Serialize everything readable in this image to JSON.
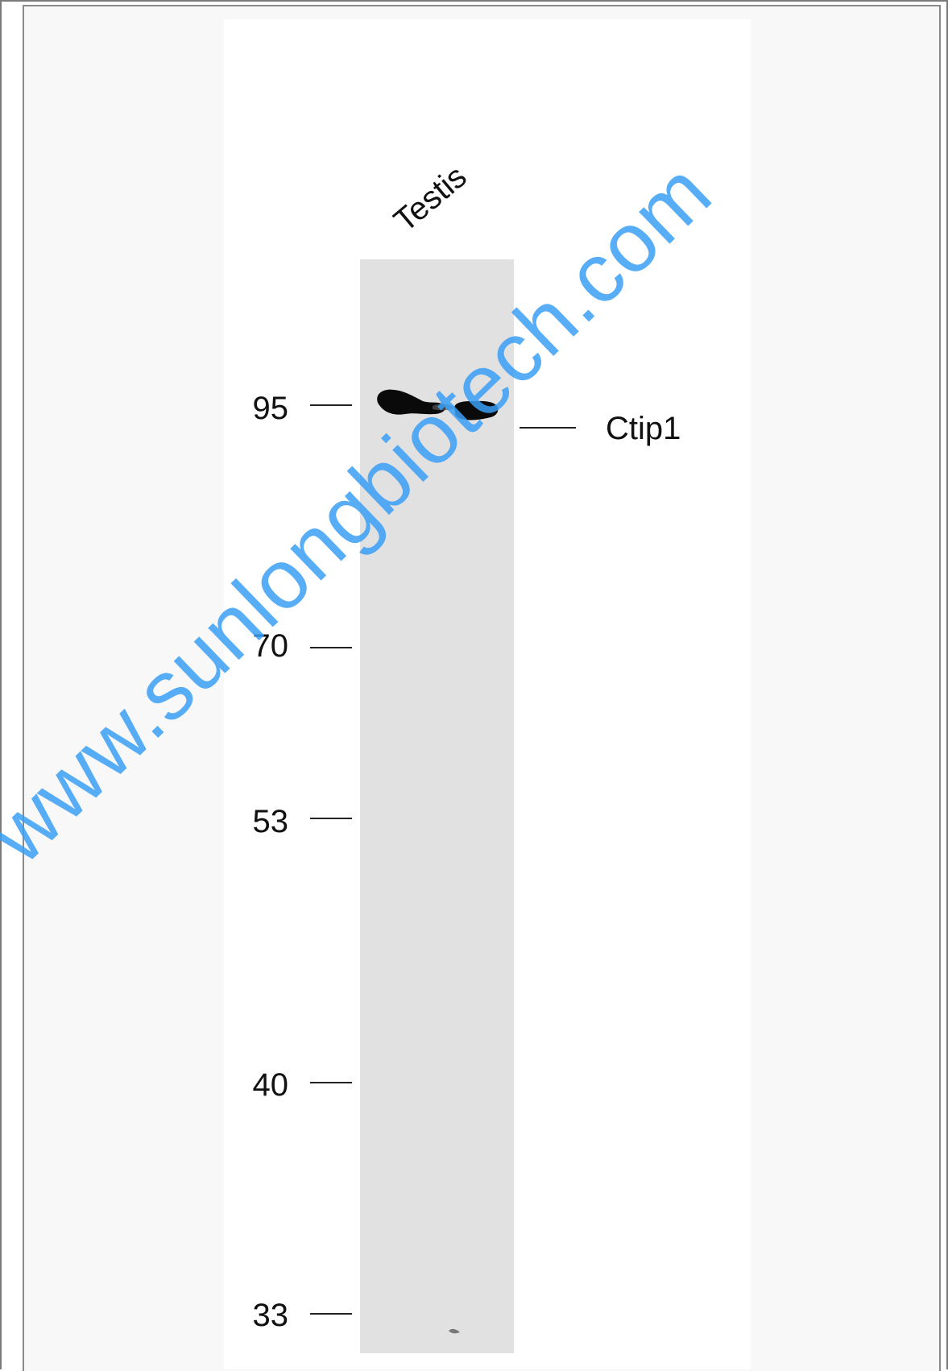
{
  "blot": {
    "lane_label": "Testis",
    "band_label": "Ctip1",
    "markers": [
      {
        "label": "95",
        "kda": 95
      },
      {
        "label": "70",
        "kda": 70
      },
      {
        "label": "53",
        "kda": 53
      },
      {
        "label": "40",
        "kda": 40
      },
      {
        "label": "33",
        "kda": 33
      }
    ],
    "band_kda": 93
  },
  "watermark": {
    "text": "www.sunlongbiotech.com",
    "color": "#3a9ff5"
  },
  "colors": {
    "lane_background": "#e1e1e1",
    "frame_border": "#8a8a8a",
    "band": "#0a0a0a"
  }
}
